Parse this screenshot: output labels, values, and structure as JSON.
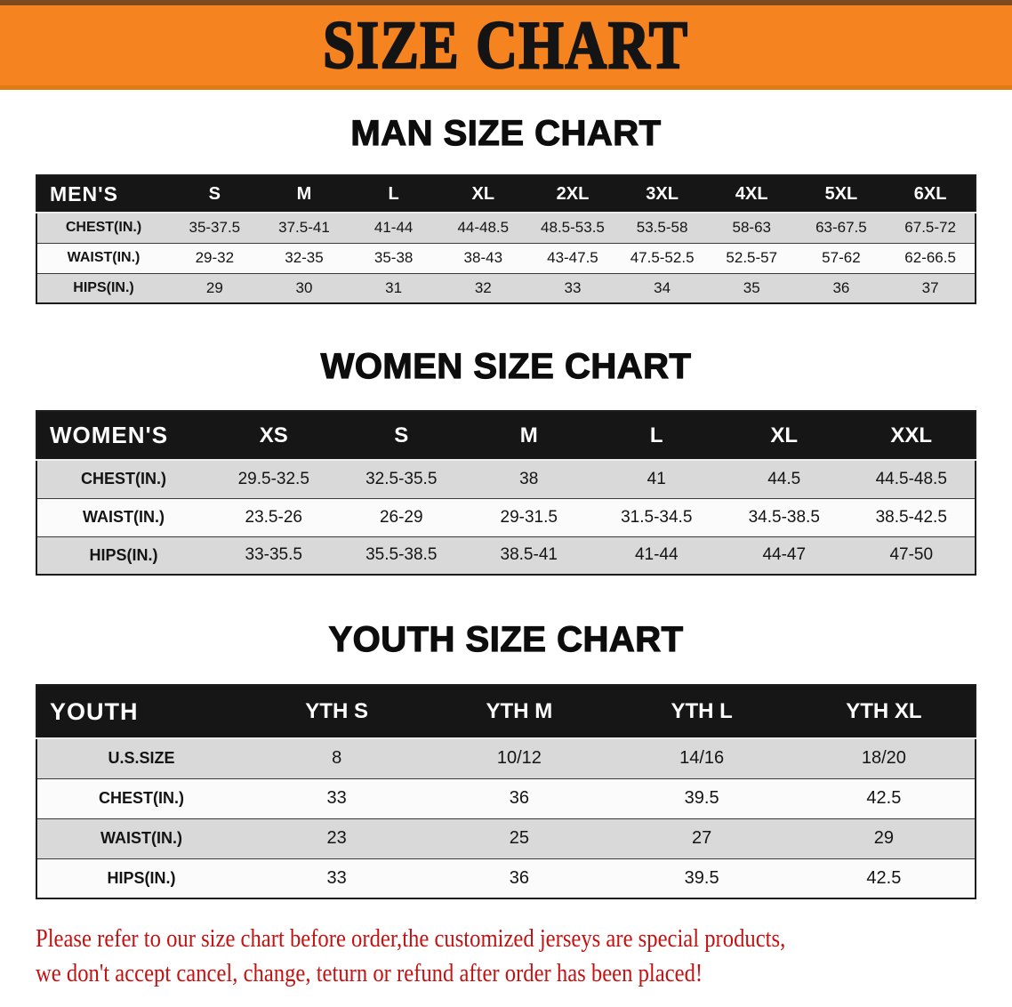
{
  "banner": {
    "title": "SIZE CHART",
    "bg_color": "#F5831F"
  },
  "sections": [
    {
      "heading": "MAN SIZE CHART",
      "table": {
        "header_label": "MEN'S",
        "columns": [
          "S",
          "M",
          "L",
          "XL",
          "2XL",
          "3XL",
          "4XL",
          "5XL",
          "6XL"
        ],
        "rows": [
          {
            "label": "CHEST(IN.)",
            "values": [
              "35-37.5",
              "37.5-41",
              "41-44",
              "44-48.5",
              "48.5-53.5",
              "53.5-58",
              "58-63",
              "63-67.5",
              "67.5-72"
            ]
          },
          {
            "label": "WAIST(IN.)",
            "values": [
              "29-32",
              "32-35",
              "35-38",
              "38-43",
              "43-47.5",
              "47.5-52.5",
              "52.5-57",
              "57-62",
              "62-66.5"
            ]
          },
          {
            "label": "HIPS(IN.)",
            "values": [
              "29",
              "30",
              "31",
              "32",
              "33",
              "34",
              "35",
              "36",
              "37"
            ]
          }
        ]
      }
    },
    {
      "heading": "WOMEN SIZE CHART",
      "table": {
        "header_label": "WOMEN'S",
        "columns": [
          "XS",
          "S",
          "M",
          "L",
          "XL",
          "XXL"
        ],
        "rows": [
          {
            "label": "CHEST(IN.)",
            "values": [
              "29.5-32.5",
              "32.5-35.5",
              "38",
              "41",
              "44.5",
              "44.5-48.5"
            ]
          },
          {
            "label": "WAIST(IN.)",
            "values": [
              "23.5-26",
              "26-29",
              "29-31.5",
              "31.5-34.5",
              "34.5-38.5",
              "38.5-42.5"
            ]
          },
          {
            "label": "HIPS(IN.)",
            "values": [
              "33-35.5",
              "35.5-38.5",
              "38.5-41",
              "41-44",
              "44-47",
              "47-50"
            ]
          }
        ]
      }
    },
    {
      "heading": "YOUTH SIZE CHART",
      "table": {
        "header_label": "YOUTH",
        "columns": [
          "YTH S",
          "YTH M",
          "YTH L",
          "YTH XL"
        ],
        "rows": [
          {
            "label": "U.S.SIZE",
            "values": [
              "8",
              "10/12",
              "14/16",
              "18/20"
            ]
          },
          {
            "label": "CHEST(IN.)",
            "values": [
              "33",
              "36",
              "39.5",
              "42.5"
            ]
          },
          {
            "label": "WAIST(IN.)",
            "values": [
              "23",
              "25",
              "27",
              "29"
            ]
          },
          {
            "label": "HIPS(IN.)",
            "values": [
              "33",
              "36",
              "39.5",
              "42.5"
            ]
          }
        ]
      }
    }
  ],
  "footer_note": {
    "line1": "Please refer to our size chart before order,the customized jerseys are special products,",
    "line2": "we don't accept cancel, change, teturn or refund after order has been placed!",
    "text_color": "#C41212"
  }
}
